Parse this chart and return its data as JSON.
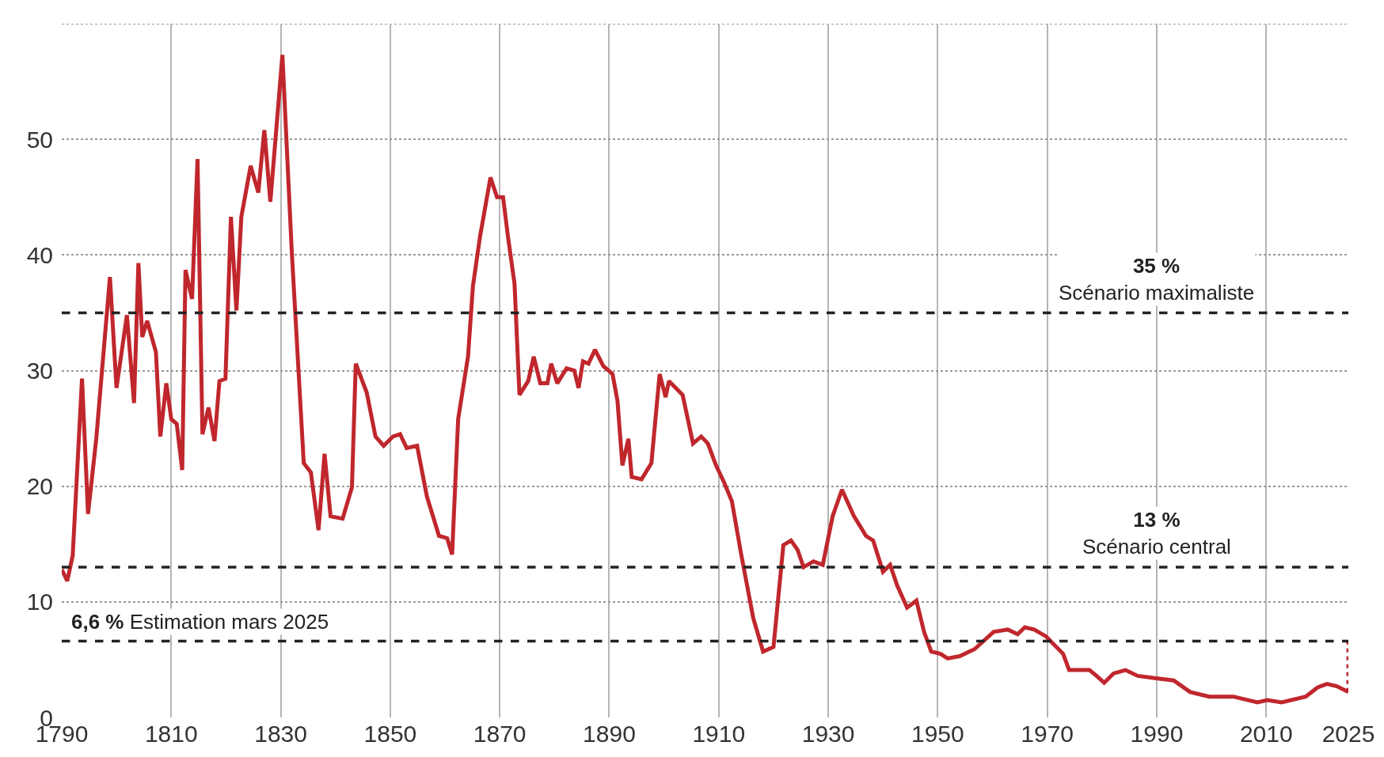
{
  "chart_data": {
    "type": "line",
    "x": [
      1790,
      1791,
      1792,
      1793.7,
      1794.8,
      1796.3,
      1798.8,
      1800,
      1801.9,
      1803.2,
      1804,
      1804.7,
      1805.6,
      1807.2,
      1808,
      1809.1,
      1810,
      1811,
      1812,
      1812.6,
      1813.8,
      1814.8,
      1815.7,
      1816.8,
      1817.9,
      1818.8,
      1819.9,
      1820.9,
      1821.9,
      1822.8,
      1824.5,
      1825.9,
      1827,
      1828.1,
      1830.3,
      1832,
      1834.2,
      1835.5,
      1836.9,
      1838,
      1839.1,
      1841.3,
      1843,
      1843.7,
      1845.7,
      1847.3,
      1848.8,
      1850.5,
      1851.8,
      1853,
      1854.9,
      1856.7,
      1858.9,
      1860.4,
      1861.3,
      1862.4,
      1864.2,
      1865.1,
      1866.4,
      1868.3,
      1869.5,
      1870.6,
      1871.5,
      1872.7,
      1873.6,
      1875.2,
      1876.2,
      1877.4,
      1878.7,
      1879.4,
      1880.5,
      1882.2,
      1883.6,
      1884.4,
      1885.2,
      1886.2,
      1887.4,
      1888.9,
      1890.6,
      1891.5,
      1892.4,
      1893.5,
      1894.1,
      1895.9,
      1897.7,
      1899.2,
      1900.3,
      1900.9,
      1903.4,
      1905.3,
      1906.8,
      1908,
      1909.5,
      1911,
      1912.4,
      1914.1,
      1916.3,
      1918.1,
      1920,
      1921.8,
      1923.2,
      1924.4,
      1925.5,
      1927.3,
      1929,
      1930.8,
      1932.5,
      1934.7,
      1936.9,
      1938.2,
      1940,
      1941.3,
      1942.6,
      1944.4,
      1946.1,
      1947.5,
      1948.8,
      1950.5,
      1951.8,
      1954,
      1956.7,
      1960.2,
      1962.8,
      1964.6,
      1965.9,
      1967.6,
      1969.8,
      1972.9,
      1974,
      1977.7,
      1979,
      1980.4,
      1982.1,
      1984.3,
      1986.5,
      1989.6,
      1993.1,
      1996.1,
      1999.6,
      2004,
      2008.4,
      2010.2,
      2012.8,
      2017.2,
      2019.4,
      2021.1,
      2022.9,
      2025
    ],
    "series": [
      {
        "color": "#c0272d",
        "values": [
          12.8,
          11.8,
          14,
          29.3,
          17.6,
          24.1,
          38.1,
          28.5,
          34.8,
          27.2,
          39.3,
          32.9,
          34.3,
          31.6,
          24.3,
          28.9,
          25.8,
          25.4,
          21.4,
          38.7,
          36.2,
          48.3,
          24.5,
          26.8,
          23.9,
          29.1,
          29.3,
          43.3,
          35.2,
          43.3,
          47.7,
          45.4,
          50.8,
          44.6,
          57.3,
          40.4,
          22,
          21.2,
          16.2,
          22.8,
          17.4,
          17.2,
          19.9,
          30.6,
          28.1,
          24.3,
          23.5,
          24.3,
          24.5,
          23.3,
          23.5,
          19.1,
          15.7,
          15.5,
          14.1,
          25.8,
          31.2,
          37.3,
          41.6,
          46.7,
          45,
          45,
          41.6,
          37.5,
          27.9,
          29.1,
          31.2,
          28.9,
          28.9,
          30.6,
          28.9,
          30.2,
          30,
          28.5,
          30.8,
          30.6,
          31.8,
          30.4,
          29.7,
          27.4,
          21.8,
          24.1,
          20.8,
          20.6,
          22,
          29.7,
          27.7,
          29.1,
          27.9,
          23.7,
          24.3,
          23.7,
          21.8,
          20.3,
          18.7,
          14.1,
          8.6,
          5.7,
          6.1,
          14.9,
          15.3,
          14.5,
          13,
          13.5,
          13.2,
          17.4,
          19.7,
          17.4,
          15.7,
          15.3,
          12.6,
          13.2,
          11.4,
          9.5,
          10.1,
          7.4,
          5.7,
          5.5,
          5.1,
          5.3,
          5.9,
          7.4,
          7.6,
          7.2,
          7.8,
          7.6,
          7,
          5.5,
          4.1,
          4.1,
          3.6,
          3,
          3.8,
          4.1,
          3.6,
          3.4,
          3.2,
          2.2,
          1.8,
          1.8,
          1.3,
          1.5,
          1.3,
          1.8,
          2.6,
          2.9,
          2.7,
          2.2
        ]
      },
      {
        "color": "#c0272d",
        "x": [
          2025,
          2025
        ],
        "values": [
          2.2,
          6.6
        ],
        "line_style": "dotted"
      }
    ],
    "xlim": [
      1790,
      2025
    ],
    "xticks": [
      1790,
      1810,
      1830,
      1850,
      1870,
      1890,
      1910,
      1930,
      1950,
      1970,
      1990,
      2010,
      2025
    ],
    "ylim": [
      0,
      60
    ],
    "yticks": [
      0,
      10,
      20,
      30,
      40,
      50,
      {
        "value": 60,
        "label": null
      }
    ],
    "grid": true,
    "marker": "none",
    "line_style": "solid",
    "ref_lines": [
      {
        "axis": "y",
        "value": 35,
        "label": "35 %",
        "color": "#222222",
        "line_style": "dashed"
      },
      {
        "axis": "y",
        "value": 13,
        "label": "13 %",
        "color": "#222222",
        "line_style": "dashed"
      },
      {
        "axis": "y",
        "value": 6.6,
        "label": "6,6 %",
        "color": "#222222",
        "line_style": "dashed"
      }
    ],
    "annotations": [
      "Scénario maximaliste",
      "Scénario central",
      "Estimation mars 2025"
    ]
  }
}
